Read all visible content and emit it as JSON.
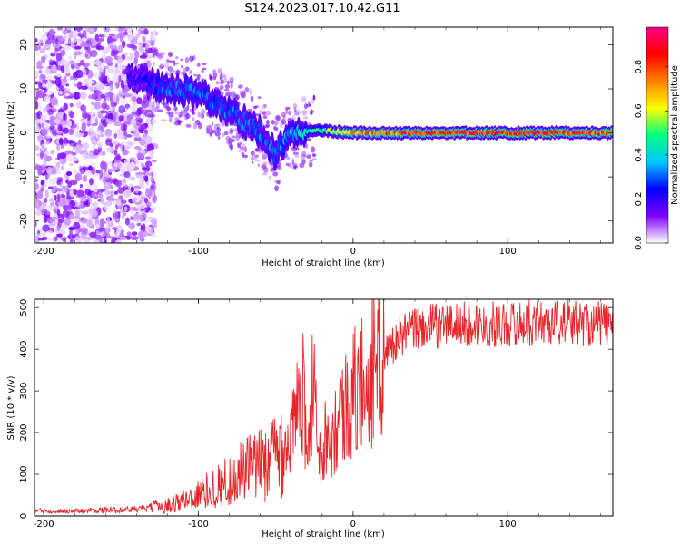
{
  "title": "S124.2023.017.10.42.G11",
  "chart_data": [
    {
      "type": "heatmap",
      "xlabel": "Height of straight line (km)",
      "ylabel": "Frequency (Hz)",
      "xlim": [
        -206,
        168
      ],
      "ylim": [
        -25,
        24
      ],
      "xticks": [
        -200,
        -100,
        0,
        100
      ],
      "yticks": [
        -20,
        -10,
        0,
        10,
        20
      ],
      "colorbar": {
        "label": "Normalized spectral amplitude",
        "range": [
          0,
          0.98
        ],
        "ticks": [
          "0.0",
          "0.2",
          "0.4",
          "0.6",
          "0.8"
        ],
        "colors": [
          "#ffffff",
          "#8000ff",
          "#0000ff",
          "#00c8ff",
          "#00ff80",
          "#ffff00",
          "#ff8000",
          "#ff0000",
          "#ff0080"
        ]
      },
      "ridge": [
        {
          "x": -140,
          "y": 12,
          "amp": 0.2
        },
        {
          "x": -120,
          "y": 10,
          "amp": 0.3
        },
        {
          "x": -100,
          "y": 9,
          "amp": 0.3
        },
        {
          "x": -80,
          "y": 5,
          "amp": 0.3
        },
        {
          "x": -60,
          "y": 0,
          "amp": 0.3
        },
        {
          "x": -50,
          "y": -5,
          "amp": 0.3
        },
        {
          "x": -40,
          "y": 0,
          "amp": 0.35
        },
        {
          "x": -20,
          "y": 0.5,
          "amp": 0.5
        },
        {
          "x": 0,
          "y": 0,
          "amp": 0.7
        },
        {
          "x": 50,
          "y": 0,
          "amp": 0.85
        },
        {
          "x": 100,
          "y": 0,
          "amp": 0.85
        },
        {
          "x": 160,
          "y": 0,
          "amp": 0.8
        }
      ]
    },
    {
      "type": "line",
      "xlabel": "Height of straight line (km)",
      "ylabel": "SNR (10 * v/v)",
      "xlim": [
        -206,
        168
      ],
      "ylim": [
        0,
        520
      ],
      "xticks": [
        -200,
        -100,
        0,
        100
      ],
      "yticks": [
        0,
        100,
        200,
        300,
        400,
        500
      ],
      "color": "#e8262a",
      "series": [
        {
          "x": [
            -206,
            -180,
            -160,
            -140,
            -120,
            -100,
            -80,
            -70,
            -60,
            -50,
            -40,
            -35,
            -30,
            -25,
            -20,
            -15,
            -10,
            -5,
            0,
            10,
            20,
            30,
            40,
            60,
            80,
            100,
            120,
            140,
            168
          ],
          "y": [
            12,
            12,
            14,
            16,
            25,
            50,
            85,
            110,
            120,
            150,
            190,
            260,
            200,
            180,
            180,
            200,
            230,
            260,
            290,
            340,
            390,
            430,
            450,
            460,
            460,
            460,
            465,
            465,
            460
          ]
        }
      ]
    }
  ]
}
